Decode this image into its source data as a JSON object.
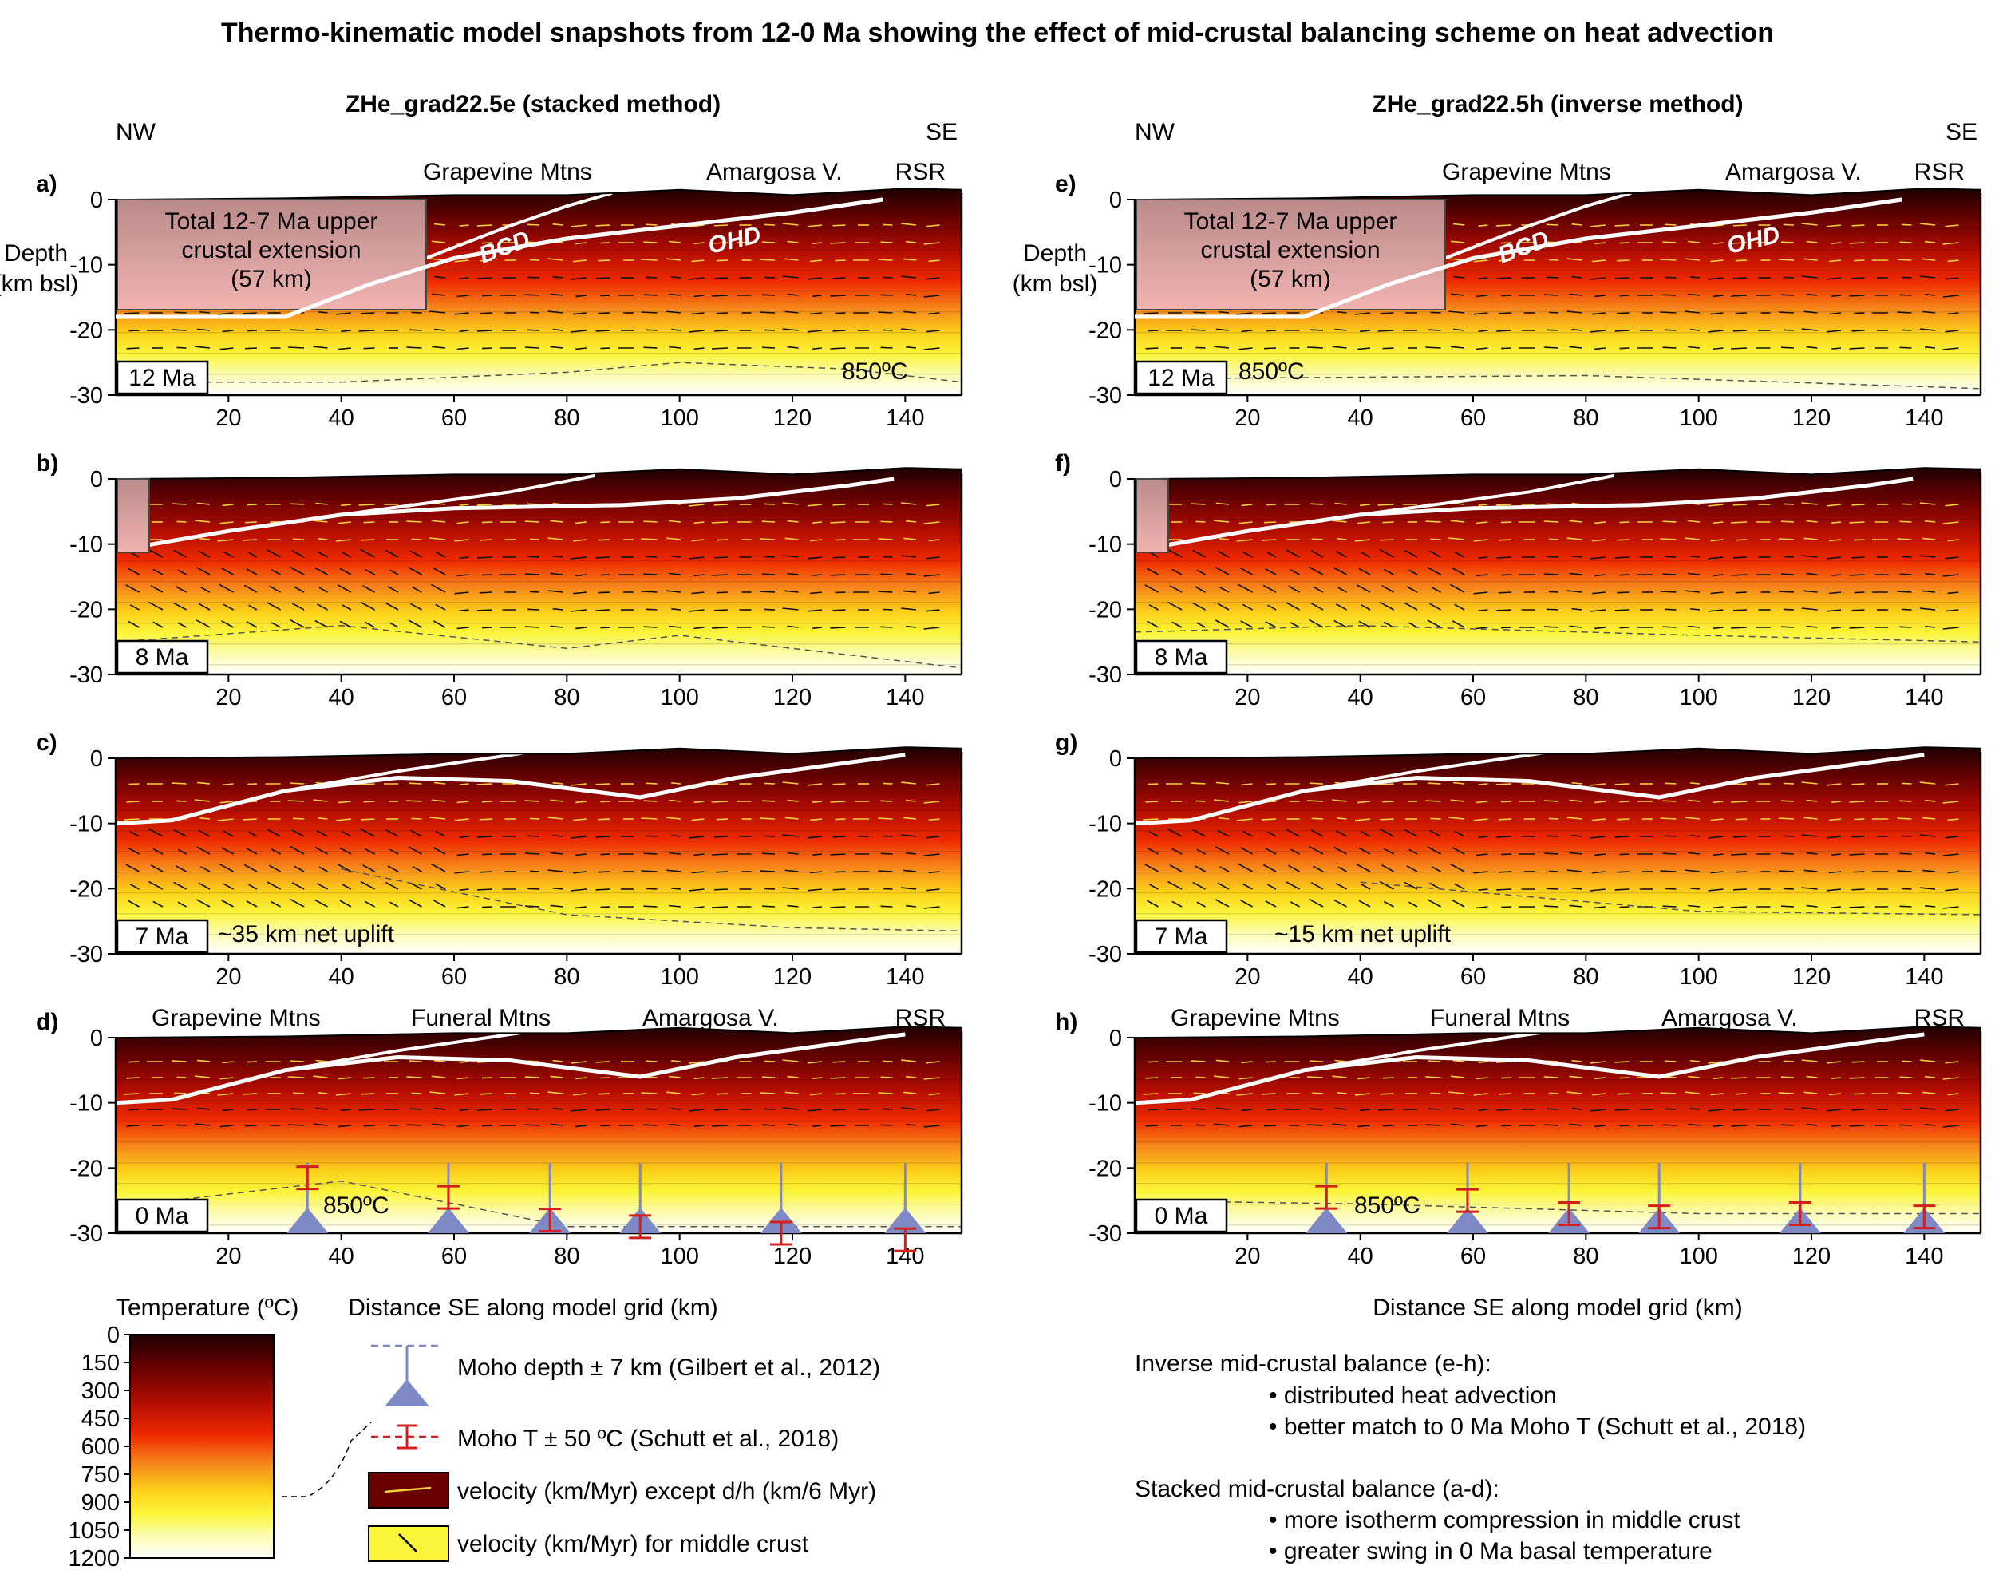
{
  "title": "Thermo-kinematic model snapshots from 12-0 Ma showing the effect of mid-crustal balancing scheme on heat advection",
  "columns": [
    {
      "title": "ZHe_grad22.5e (stacked method)",
      "nw": "NW",
      "se": "SE"
    },
    {
      "title": "ZHe_grad22.5h (inverse method)",
      "nw": "NW",
      "se": "SE"
    }
  ],
  "y_axis": {
    "label_line1": "Depth",
    "label_line2": "(km bsl)",
    "ticks": [
      "0",
      "-10",
      "-20",
      "-30"
    ]
  },
  "x_axis": {
    "label": "Distance SE along model grid (km)",
    "ticks": [
      "20",
      "40",
      "60",
      "80",
      "100",
      "120",
      "140"
    ]
  },
  "panels": [
    {
      "id": "a)",
      "age": "12 Ma",
      "iso_label": "850ºC"
    },
    {
      "id": "b)",
      "age": "8 Ma"
    },
    {
      "id": "c)",
      "age": "7 Ma",
      "uplift": "~35 km net uplift"
    },
    {
      "id": "d)",
      "age": "0 Ma",
      "iso_label": "850ºC"
    },
    {
      "id": "e)",
      "age": "12 Ma",
      "iso_label": "850ºC"
    },
    {
      "id": "f)",
      "age": "8 Ma"
    },
    {
      "id": "g)",
      "age": "7 Ma",
      "uplift": "~15 km net uplift"
    },
    {
      "id": "h)",
      "age": "0 Ma",
      "iso_label": "850ºC"
    }
  ],
  "top_places": {
    "grapevine": "Grapevine Mtns",
    "amargosa": "Amargosa V.",
    "rsr": "RSR"
  },
  "bottom_places": {
    "grapevine": "Grapevine Mtns",
    "funeral": "Funeral Mtns",
    "amargosa": "Amargosa V.",
    "rsr": "RSR"
  },
  "extension_box": {
    "line1": "Total 12-7 Ma upper",
    "line2": "crustal extension",
    "line3": "(57 km)"
  },
  "faults": {
    "bcd": "BCD",
    "ohd": "OHD"
  },
  "temperature_legend": {
    "title": "Temperature (ºC)",
    "ticks": [
      "0",
      "150",
      "300",
      "450",
      "600",
      "750",
      "900",
      "1050",
      "1200"
    ]
  },
  "legend_items": [
    {
      "text": "Moho depth ± 7 km (Gilbert et al., 2012)"
    },
    {
      "text": "Moho T ± 50 ºC (Schutt et al., 2018)"
    },
    {
      "text": "velocity (km/Myr) except d/h (km/6 Myr)"
    },
    {
      "text": "velocity (km/Myr) for middle crust"
    }
  ],
  "notes": {
    "inverse_title": "Inverse mid-crustal balance (e-h):",
    "inverse_1": "• distributed heat advection",
    "inverse_2": "• better match to 0 Ma Moho T (Schutt et al., 2018)",
    "stacked_title": "Stacked mid-crustal balance (a-d):",
    "stacked_1": "• more isotherm compression in middle crust",
    "stacked_2": "• greater swing in 0 Ma basal temperature"
  },
  "colors": {
    "hot": "#ffffff",
    "mid": "#f5e100",
    "warm": "#ee2200",
    "cool": "#3a0000",
    "moho": "#7f89c6",
    "moho_t": "#d41f1f"
  }
}
